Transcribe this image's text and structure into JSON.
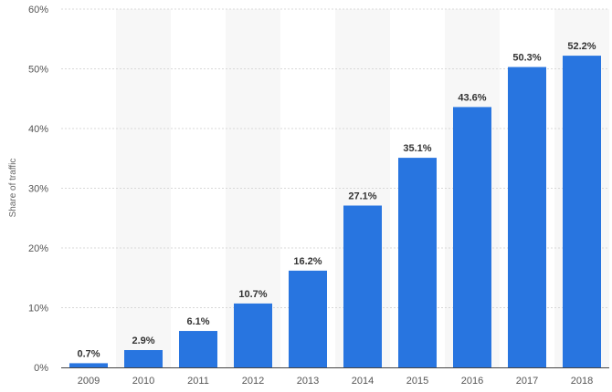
{
  "chart_data": {
    "type": "bar",
    "title": "",
    "xlabel": "",
    "ylabel": "Share of traffic",
    "categories": [
      "2009",
      "2010",
      "2011",
      "2012",
      "2013",
      "2014",
      "2015",
      "2016",
      "2017",
      "2018"
    ],
    "values": [
      0.7,
      2.9,
      6.1,
      10.7,
      16.2,
      27.1,
      35.1,
      43.6,
      50.3,
      52.2
    ],
    "value_labels": [
      "0.7%",
      "2.9%",
      "6.1%",
      "10.7%",
      "16.2%",
      "27.1%",
      "35.1%",
      "43.6%",
      "50.3%",
      "52.2%"
    ],
    "ylim": [
      0,
      60
    ],
    "yticks": [
      0,
      10,
      20,
      30,
      40,
      50,
      60
    ],
    "ytick_labels": [
      "0%",
      "10%",
      "20%",
      "30%",
      "40%",
      "50%",
      "60%"
    ],
    "grid": true,
    "grid_style": "dashed horizontal",
    "alternating_column_bands": true,
    "legend": "none"
  },
  "colors": {
    "bar": "#2875e0",
    "band": "#f7f7f7",
    "grid": "#d8d8d8",
    "axis": "#444444"
  }
}
